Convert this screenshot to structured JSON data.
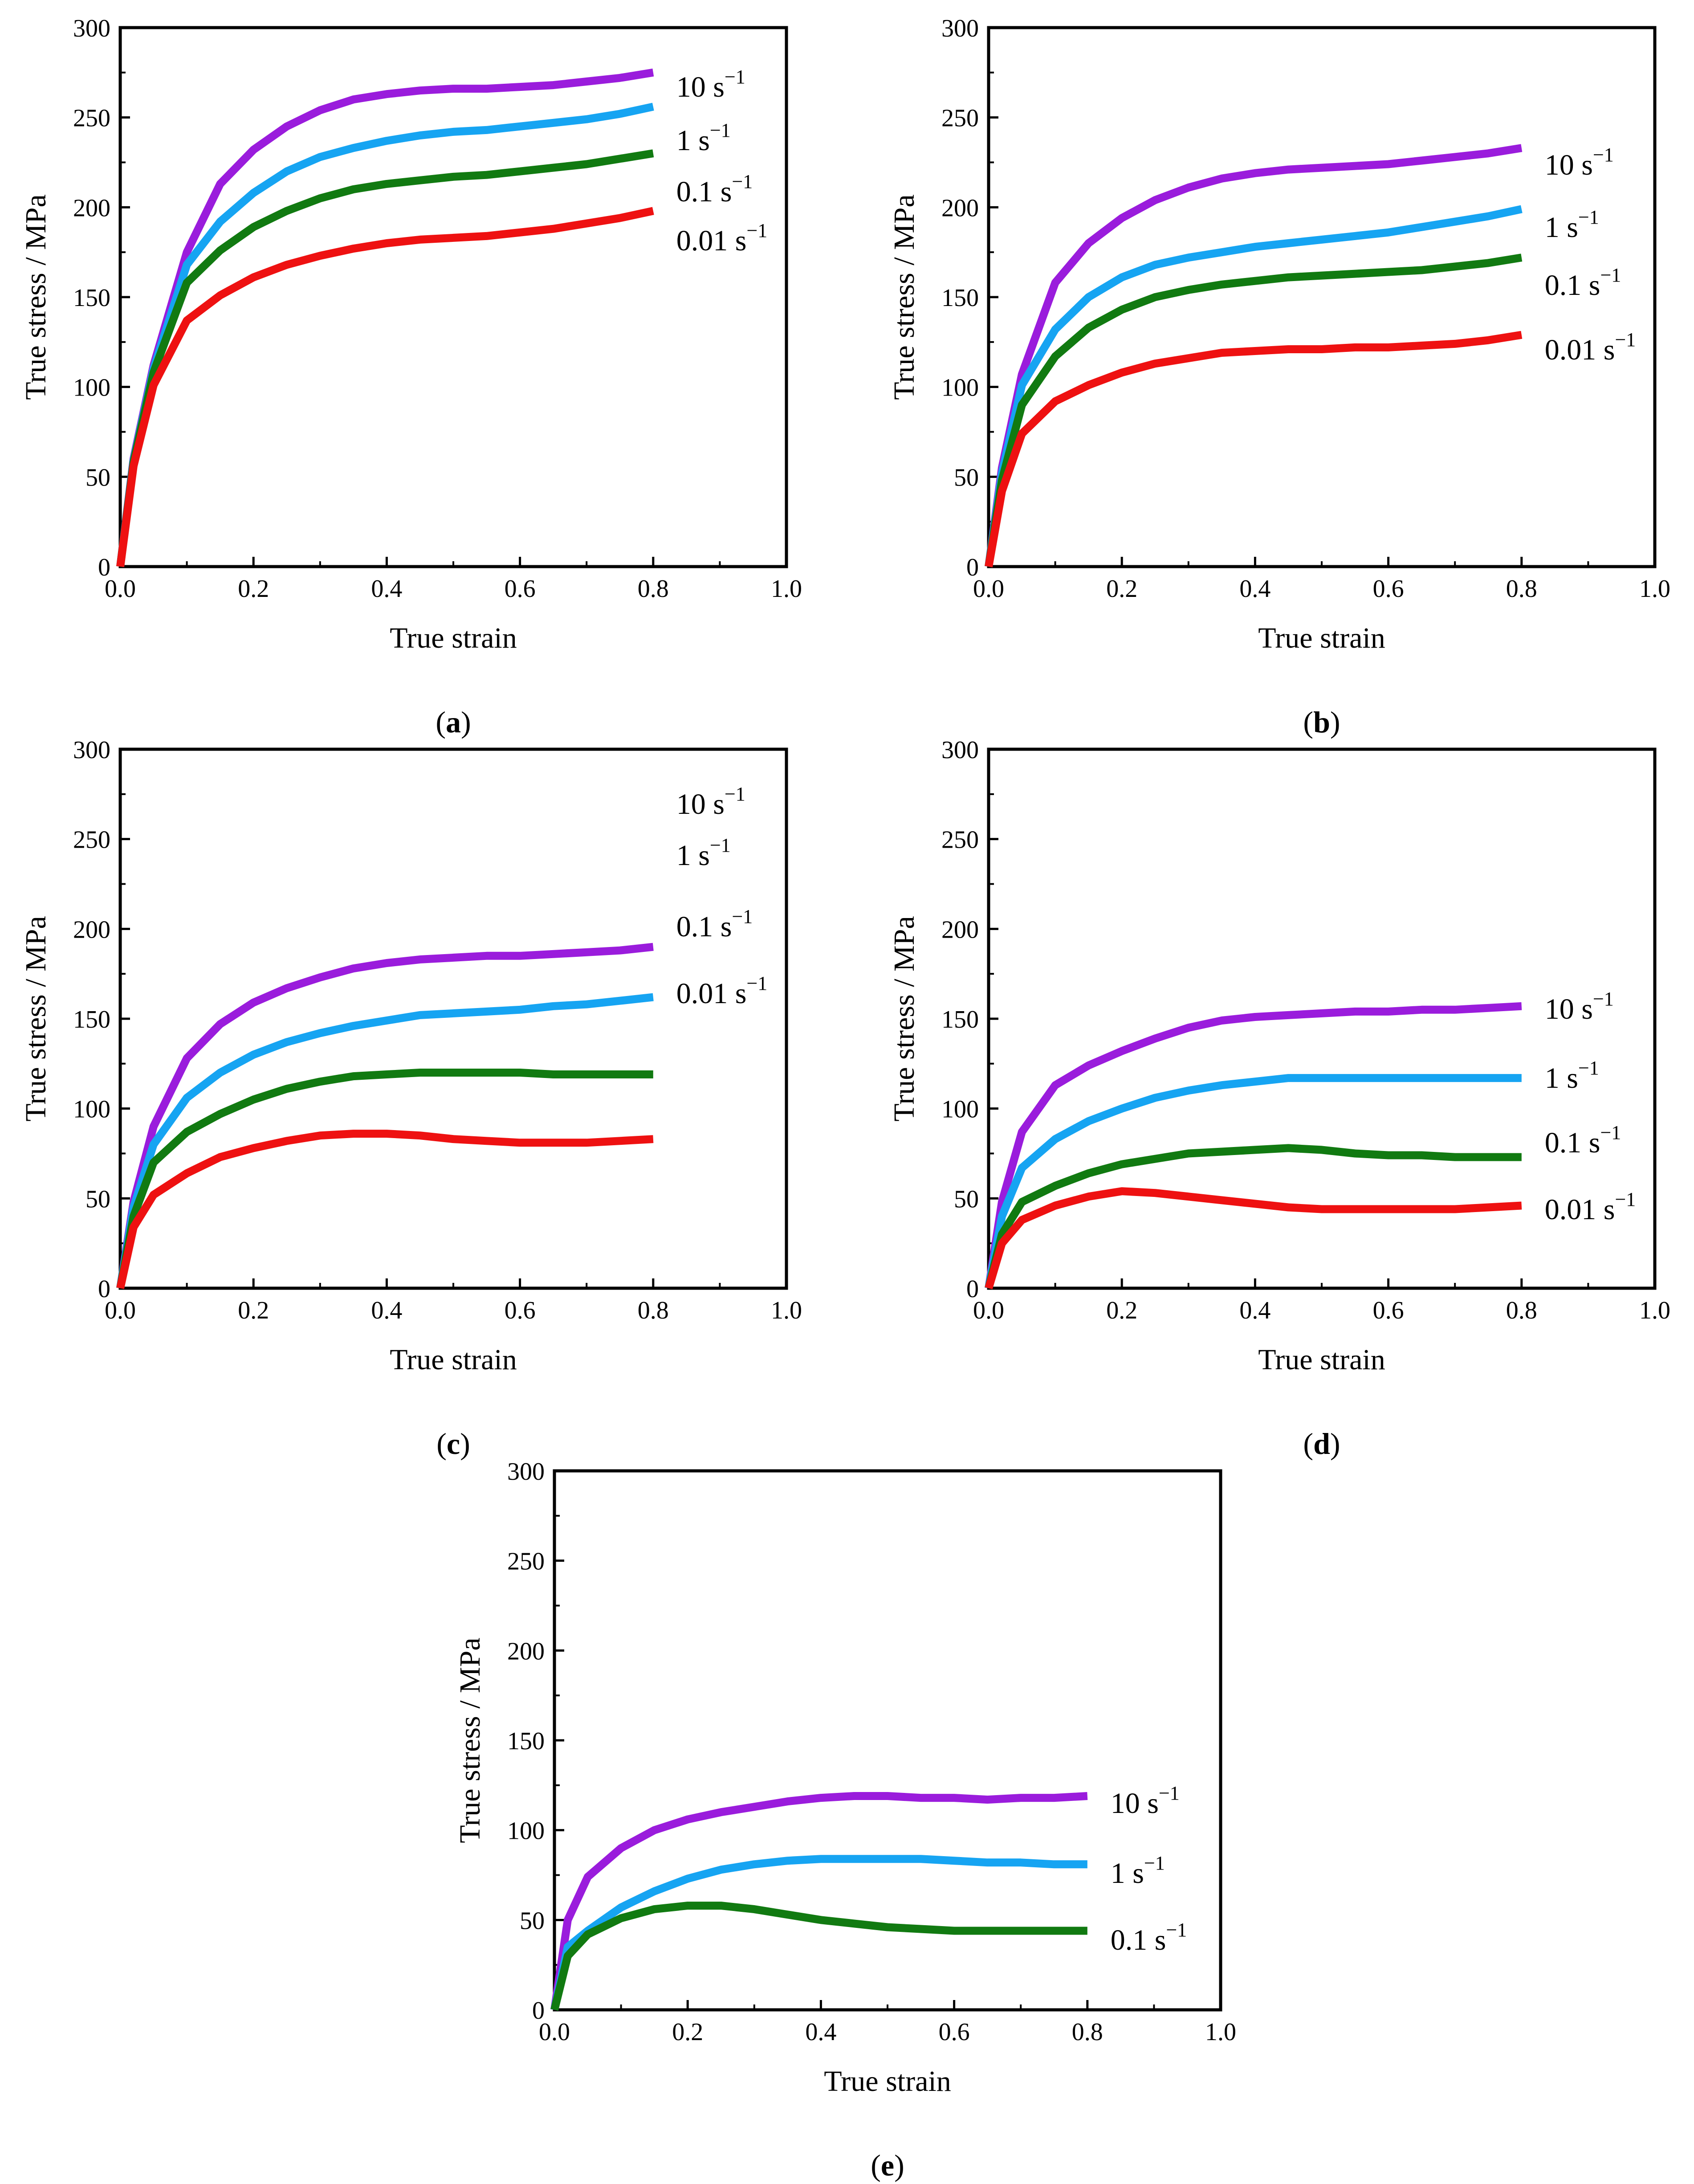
{
  "figure": {
    "series_colors": {
      "10 s-1": "#9a1cdc",
      "1 s-1": "#16a4f2",
      "0.1 s-1": "#117a11",
      "0.01 s-1": "#ee1111"
    }
  },
  "chart_data": [
    {
      "type": "line",
      "panel": "a",
      "panel_open": "(",
      "panel_close": ")",
      "xlabel": "True strain",
      "ylabel": "True stress / MPa",
      "xlim": [
        0,
        1.0
      ],
      "ylim": [
        0,
        300
      ],
      "xticks": [
        "0.0",
        "0.2",
        "0.4",
        "0.6",
        "0.8",
        "1.0"
      ],
      "yticks": [
        "0",
        "50",
        "100",
        "150",
        "200",
        "250",
        "300"
      ],
      "x": [
        0,
        0.02,
        0.05,
        0.1,
        0.15,
        0.2,
        0.25,
        0.3,
        0.35,
        0.4,
        0.45,
        0.5,
        0.55,
        0.6,
        0.65,
        0.7,
        0.75,
        0.8
      ],
      "series": [
        {
          "name": "10 s-1",
          "label_base": "10 s",
          "label_exp": "−1",
          "color": "#9a1cdc",
          "values": [
            0,
            60,
            112,
            175,
            213,
            232,
            245,
            254,
            260,
            263,
            265,
            266,
            266,
            267,
            268,
            270,
            272,
            275
          ]
        },
        {
          "name": "1 s-1",
          "label_base": "1 s",
          "label_exp": "−1",
          "color": "#16a4f2",
          "values": [
            0,
            59,
            110,
            168,
            192,
            208,
            220,
            228,
            233,
            237,
            240,
            242,
            243,
            245,
            247,
            249,
            252,
            256
          ]
        },
        {
          "name": "0.1 s-1",
          "label_base": "0.1 s",
          "label_exp": "−1",
          "color": "#117a11",
          "values": [
            0,
            58,
            108,
            158,
            176,
            189,
            198,
            205,
            210,
            213,
            215,
            217,
            218,
            220,
            222,
            224,
            227,
            230
          ]
        },
        {
          "name": "0.01 s-1",
          "label_base": "0.01 s",
          "label_exp": "−1",
          "color": "#ee1111",
          "values": [
            0,
            56,
            101,
            137,
            151,
            161,
            168,
            173,
            177,
            180,
            182,
            183,
            184,
            186,
            188,
            191,
            194,
            198
          ]
        }
      ]
    },
    {
      "type": "line",
      "panel": "b",
      "panel_open": "(",
      "panel_close": ")",
      "xlabel": "True strain",
      "ylabel": "True stress / MPa",
      "xlim": [
        0,
        1.0
      ],
      "ylim": [
        0,
        300
      ],
      "xticks": [
        "0.0",
        "0.2",
        "0.4",
        "0.6",
        "0.8",
        "1.0"
      ],
      "yticks": [
        "0",
        "50",
        "100",
        "150",
        "200",
        "250",
        "300"
      ],
      "x": [
        0,
        0.02,
        0.05,
        0.1,
        0.15,
        0.2,
        0.25,
        0.3,
        0.35,
        0.4,
        0.45,
        0.5,
        0.55,
        0.6,
        0.65,
        0.7,
        0.75,
        0.8
      ],
      "series": [
        {
          "name": "10 s-1",
          "label_base": "10 s",
          "label_exp": "−1",
          "color": "#9a1cdc",
          "values": [
            0,
            55,
            107,
            158,
            180,
            194,
            204,
            211,
            216,
            219,
            221,
            222,
            223,
            224,
            226,
            228,
            230,
            233
          ]
        },
        {
          "name": "1 s-1",
          "label_base": "1 s",
          "label_exp": "−1",
          "color": "#16a4f2",
          "values": [
            0,
            52,
            101,
            132,
            150,
            161,
            168,
            172,
            175,
            178,
            180,
            182,
            184,
            186,
            189,
            192,
            195,
            199
          ]
        },
        {
          "name": "0.1 s-1",
          "label_base": "0.1 s",
          "label_exp": "−1",
          "color": "#117a11",
          "values": [
            0,
            48,
            90,
            117,
            133,
            143,
            150,
            154,
            157,
            159,
            161,
            162,
            163,
            164,
            165,
            167,
            169,
            172
          ]
        },
        {
          "name": "0.01 s-1",
          "label_base": "0.01 s",
          "label_exp": "−1",
          "color": "#ee1111",
          "values": [
            0,
            42,
            74,
            92,
            101,
            108,
            113,
            116,
            119,
            120,
            121,
            121,
            122,
            122,
            123,
            124,
            126,
            129
          ]
        }
      ]
    },
    {
      "type": "line",
      "panel": "c",
      "panel_open": "(",
      "panel_close": ")",
      "xlabel": "True strain",
      "ylabel": "True stress / MPa",
      "xlim": [
        0,
        1.0
      ],
      "ylim": [
        0,
        300
      ],
      "xticks": [
        "0.0",
        "0.2",
        "0.4",
        "0.6",
        "0.8",
        "1.0"
      ],
      "yticks": [
        "0",
        "50",
        "100",
        "150",
        "200",
        "250",
        "300"
      ],
      "x": [
        0,
        0.02,
        0.05,
        0.1,
        0.15,
        0.2,
        0.25,
        0.3,
        0.35,
        0.4,
        0.45,
        0.5,
        0.55,
        0.6,
        0.65,
        0.7,
        0.75,
        0.8
      ],
      "series": [
        {
          "name": "10 s-1",
          "label_base": "10 s",
          "label_exp": "−1",
          "color": "#9a1cdc",
          "values": [
            0,
            48,
            90,
            128,
            147,
            159,
            167,
            173,
            178,
            181,
            183,
            184,
            185,
            185,
            186,
            187,
            188,
            190
          ]
        },
        {
          "name": "1 s-1",
          "label_base": "1 s",
          "label_exp": "−1",
          "color": "#16a4f2",
          "values": [
            0,
            45,
            80,
            106,
            120,
            130,
            137,
            142,
            146,
            149,
            152,
            153,
            154,
            155,
            157,
            158,
            160,
            162
          ]
        },
        {
          "name": "0.1 s-1",
          "label_base": "0.1 s",
          "label_exp": "−1",
          "color": "#117a11",
          "values": [
            0,
            40,
            70,
            87,
            97,
            105,
            111,
            115,
            118,
            119,
            120,
            120,
            120,
            120,
            119,
            119,
            119,
            119
          ]
        },
        {
          "name": "0.01 s-1",
          "label_base": "0.01 s",
          "label_exp": "−1",
          "color": "#ee1111",
          "values": [
            0,
            34,
            52,
            64,
            73,
            78,
            82,
            85,
            86,
            86,
            85,
            83,
            82,
            81,
            81,
            81,
            82,
            83
          ]
        }
      ]
    },
    {
      "type": "line",
      "panel": "d",
      "panel_open": "(",
      "panel_close": ")",
      "xlabel": "True strain",
      "ylabel": "True stress / MPa",
      "xlim": [
        0,
        1.0
      ],
      "ylim": [
        0,
        300
      ],
      "xticks": [
        "0.0",
        "0.2",
        "0.4",
        "0.6",
        "0.8",
        "1.0"
      ],
      "yticks": [
        "0",
        "50",
        "100",
        "150",
        "200",
        "250",
        "300"
      ],
      "x": [
        0,
        0.02,
        0.05,
        0.1,
        0.15,
        0.2,
        0.25,
        0.3,
        0.35,
        0.4,
        0.45,
        0.5,
        0.55,
        0.6,
        0.65,
        0.7,
        0.75,
        0.8
      ],
      "series": [
        {
          "name": "10 s-1",
          "label_base": "10 s",
          "label_exp": "−1",
          "color": "#9a1cdc",
          "values": [
            0,
            48,
            87,
            113,
            124,
            132,
            139,
            145,
            149,
            151,
            152,
            153,
            154,
            154,
            155,
            155,
            156,
            157
          ]
        },
        {
          "name": "1 s-1",
          "label_base": "1 s",
          "label_exp": "−1",
          "color": "#16a4f2",
          "values": [
            0,
            40,
            67,
            83,
            93,
            100,
            106,
            110,
            113,
            115,
            117,
            117,
            117,
            117,
            117,
            117,
            117,
            117
          ]
        },
        {
          "name": "0.1 s-1",
          "label_base": "0.1 s",
          "label_exp": "−1",
          "color": "#117a11",
          "values": [
            0,
            30,
            48,
            57,
            64,
            69,
            72,
            75,
            76,
            77,
            78,
            77,
            75,
            74,
            74,
            73,
            73,
            73
          ]
        },
        {
          "name": "0.01 s-1",
          "label_base": "0.01 s",
          "label_exp": "−1",
          "color": "#ee1111",
          "values": [
            0,
            25,
            38,
            46,
            51,
            54,
            53,
            51,
            49,
            47,
            45,
            44,
            44,
            44,
            44,
            44,
            45,
            46
          ]
        }
      ]
    },
    {
      "type": "line",
      "panel": "e",
      "panel_open": "(",
      "panel_close": ")",
      "xlabel": "True strain",
      "ylabel": "True stress / MPa",
      "xlim": [
        0,
        1.0
      ],
      "ylim": [
        0,
        300
      ],
      "xticks": [
        "0.0",
        "0.2",
        "0.4",
        "0.6",
        "0.8",
        "1.0"
      ],
      "yticks": [
        "0",
        "50",
        "100",
        "150",
        "200",
        "250",
        "300"
      ],
      "x": [
        0,
        0.02,
        0.05,
        0.1,
        0.15,
        0.2,
        0.25,
        0.3,
        0.35,
        0.4,
        0.45,
        0.5,
        0.55,
        0.6,
        0.65,
        0.7,
        0.75,
        0.8
      ],
      "series": [
        {
          "name": "10 s-1",
          "label_base": "10 s",
          "label_exp": "−1",
          "color": "#9a1cdc",
          "values": [
            0,
            50,
            74,
            90,
            100,
            106,
            110,
            113,
            116,
            118,
            119,
            119,
            118,
            118,
            117,
            118,
            118,
            119
          ]
        },
        {
          "name": "1 s-1",
          "label_base": "1 s",
          "label_exp": "−1",
          "color": "#16a4f2",
          "values": [
            0,
            35,
            44,
            57,
            66,
            73,
            78,
            81,
            83,
            84,
            84,
            84,
            84,
            83,
            82,
            82,
            81,
            81
          ]
        },
        {
          "name": "0.1 s-1",
          "label_base": "0.1 s",
          "label_exp": "−1",
          "color": "#117a11",
          "values": [
            0,
            30,
            42,
            51,
            56,
            58,
            58,
            56,
            53,
            50,
            48,
            46,
            45,
            44,
            44,
            44,
            44,
            44
          ]
        }
      ]
    }
  ]
}
